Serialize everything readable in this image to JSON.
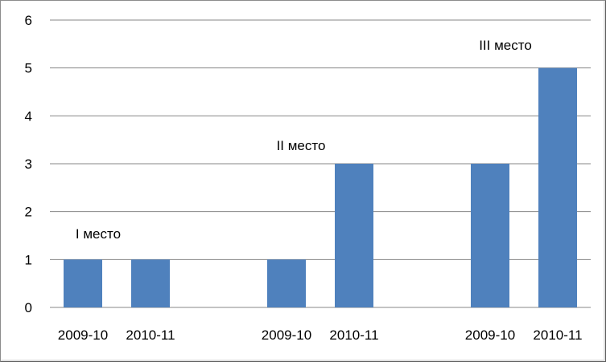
{
  "chart_data": {
    "type": "bar",
    "categories": [
      "2009-10",
      "2010-11",
      "2009-10",
      "2010-11",
      "2009-10",
      "2010-11"
    ],
    "values": [
      1,
      1,
      1,
      3,
      3,
      5
    ],
    "groups": [
      {
        "label": "I место",
        "categories": [
          "2009-10",
          "2010-11"
        ],
        "values": [
          1,
          1
        ]
      },
      {
        "label": "II место",
        "categories": [
          "2009-10",
          "2010-11"
        ],
        "values": [
          1,
          3
        ]
      },
      {
        "label": "III место",
        "categories": [
          "2009-10",
          "2010-11"
        ],
        "values": [
          3,
          5
        ]
      }
    ],
    "ylim": [
      0,
      6
    ],
    "yticks": [
      "0",
      "1",
      "2",
      "3",
      "4",
      "5",
      "6"
    ],
    "grid": true,
    "legend": "none",
    "bar_color": "#4f81bd",
    "grid_color": "#878787",
    "title": "",
    "xlabel": "",
    "ylabel": ""
  }
}
